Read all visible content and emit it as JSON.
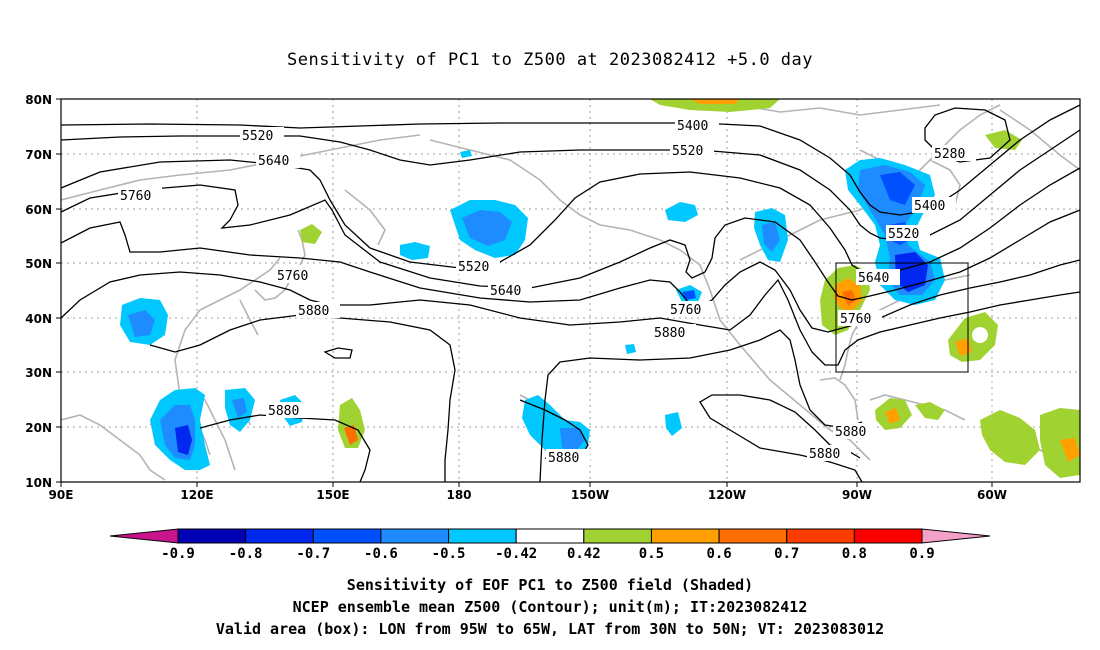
{
  "title": "Sensitivity of PC1 to Z500 at 2023082412 +5.0 day",
  "axes": {
    "lat_labels": [
      "80N",
      "70N",
      "60N",
      "50N",
      "40N",
      "30N",
      "20N",
      "10N"
    ],
    "lon_labels": [
      "90E",
      "120E",
      "150E",
      "180",
      "150W",
      "120W",
      "90W",
      "60W"
    ]
  },
  "contour_labels": {
    "l5400a": "5400",
    "l5400b": "5400",
    "l5280": "5280",
    "l5520a": "5520",
    "l5520b": "5520",
    "l5520c": "5520",
    "l5520d": "5520",
    "l5640a": "5640",
    "l5640b": "5640",
    "l5640c": "5640",
    "l5760a": "5760",
    "l5760b": "5760",
    "l5760c": "5760",
    "l5760d": "5760",
    "l5880a": "5880",
    "l5880b": "5880",
    "l5880c": "5880",
    "l5880d": "5880",
    "l5880e": "5880",
    "l5880f": "5880"
  },
  "colorbar": {
    "labels": [
      "-0.9",
      "-0.8",
      "-0.7",
      "-0.6",
      "-0.5",
      "-0.42",
      "0.42",
      "0.5",
      "0.6",
      "0.7",
      "0.8",
      "0.9"
    ],
    "colors": [
      "#0000b4",
      "#0028f0",
      "#0050ff",
      "#1e8cff",
      "#00c8ff",
      "#ffffff",
      "#a0d232",
      "#ffa000",
      "#ff6e00",
      "#ff3c00",
      "#ff0000"
    ],
    "low_arrow_color": "#c8148c",
    "high_arrow_color": "#f5a0c8"
  },
  "captions": {
    "line1": "Sensitivity of EOF PC1 to Z500 field (Shaded)",
    "line2": "NCEP ensemble mean Z500 (Contour); unit(m); IT:2023082412",
    "line3": "Valid area (box): LON from 95W to 65W, LAT from 30N to 50N; VT: 2023083012"
  },
  "colors": {
    "coastline": "#b4b4b4",
    "contour": "#000000",
    "grid": "#a0a0a0",
    "shade_light_blue": "#00c8ff",
    "shade_mid_blue": "#1e8cff",
    "shade_blue": "#0050ff",
    "shade_dark_blue": "#0028f0",
    "shade_green": "#a0d232",
    "shade_orange": "#ffa000",
    "shade_dark_orange": "#ff6e00"
  }
}
